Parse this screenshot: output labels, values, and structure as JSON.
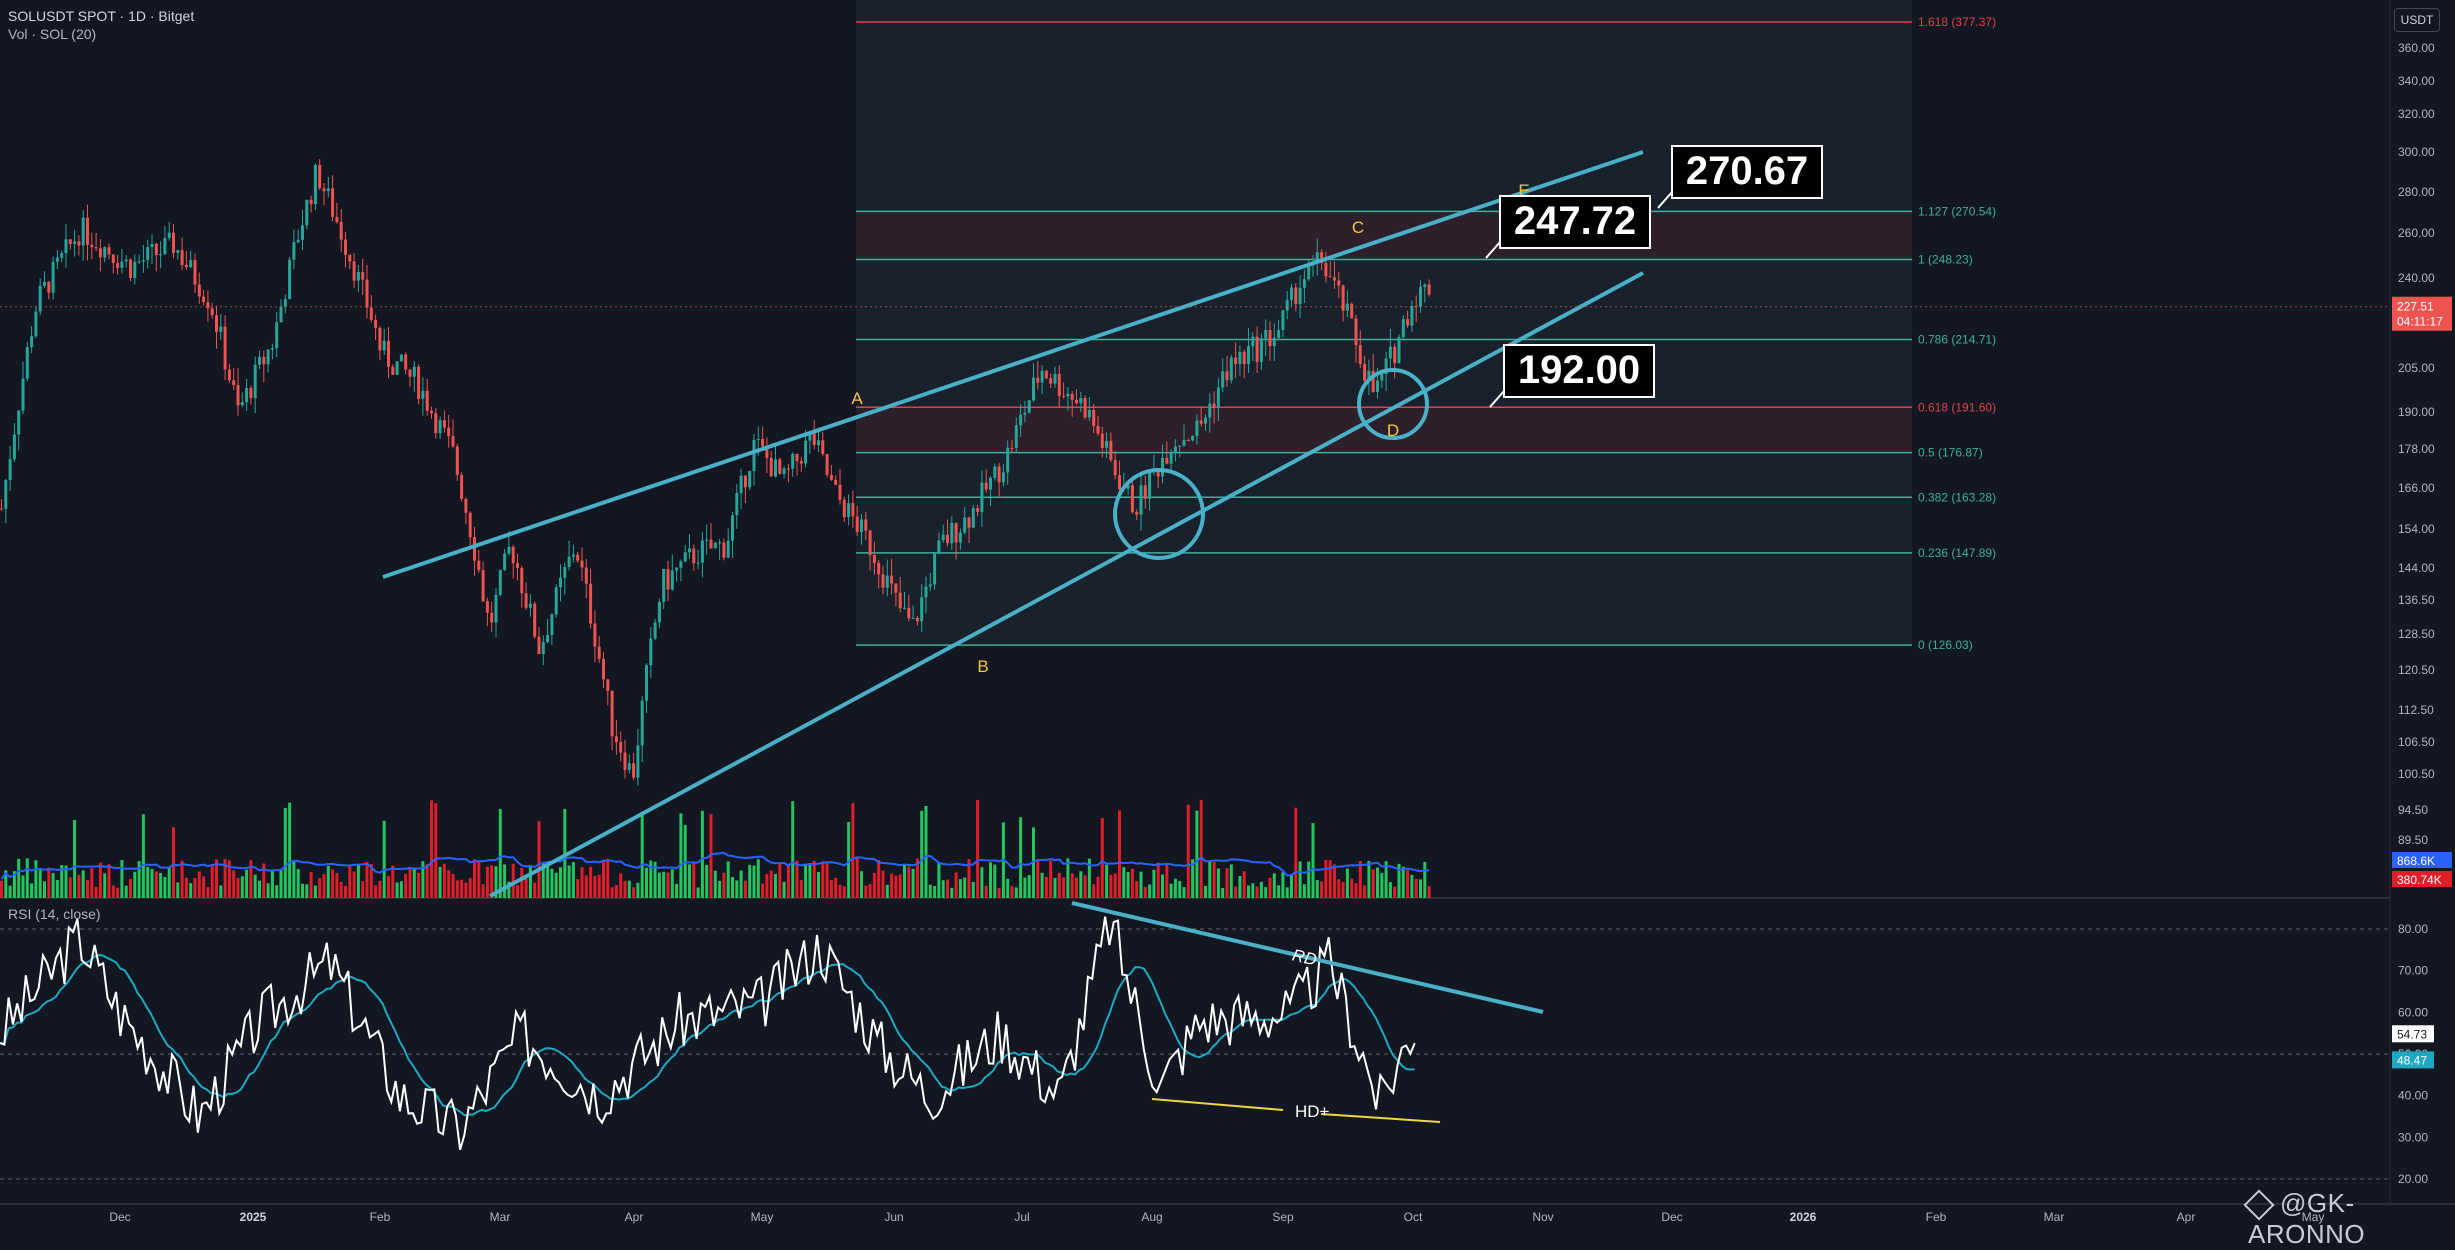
{
  "header": {
    "symbol_line": "SOLUSDT SPOT · 1D · Bitget",
    "volume_line": "Vol · SOL (20)",
    "rsi_line": "RSI (14, close)",
    "currency_badge": "USDT"
  },
  "watermark": "@GK-ARONNO",
  "colors": {
    "background": "#131722",
    "up_candle": "#26a69a",
    "down_candle": "#ef5350",
    "volume_up": "#22c55e",
    "volume_down": "#e11d2a",
    "volume_ma": "#2962ff",
    "fib_line": "#3fae9b",
    "fib_line_red": "#e0414a",
    "channel": "#4ab0c8",
    "rsi_line": "#ffffff",
    "rsi_ma": "#1fa8c2",
    "wave_label": "#f5c542",
    "hd_line": "#f0d544"
  },
  "chart_data": {
    "type": "candlestick",
    "symbol": "SOLUSDT",
    "timeframe": "1D",
    "exchange": "Bitget",
    "x_axis_labels": [
      "Dec",
      "2025",
      "Feb",
      "Mar",
      "Apr",
      "May",
      "Jun",
      "Jul",
      "Aug",
      "Sep",
      "Oct",
      "Nov",
      "Dec",
      "2026",
      "Feb",
      "Mar",
      "Apr",
      "May"
    ],
    "price_axis_ticks": [
      "360.00",
      "340.00",
      "320.00",
      "300.00",
      "280.00",
      "260.00",
      "240.00",
      "220.00",
      "205.00",
      "190.00",
      "178.00",
      "166.00",
      "154.00",
      "144.00",
      "136.50",
      "128.50",
      "120.50",
      "112.50",
      "106.50",
      "100.50",
      "94.50",
      "89.50"
    ],
    "price_axis_values": [
      360,
      340,
      320,
      300,
      280,
      260,
      240,
      220,
      205,
      190,
      178,
      166,
      154,
      144,
      136.5,
      128.5,
      120.5,
      112.5,
      106.5,
      100.5,
      94.5,
      89.5
    ],
    "last_price": {
      "label": "227.51",
      "timer": "04:11:17",
      "value": 227.51
    },
    "volume_badges": [
      "868.6K",
      "380.74K"
    ],
    "fibonacci": [
      {
        "label": "1.618 (377.37)",
        "price": 377.37,
        "color": "red"
      },
      {
        "label": "1.127 (270.54)",
        "price": 270.54,
        "color": "teal"
      },
      {
        "label": "1 (248.23)",
        "price": 248.23,
        "color": "teal"
      },
      {
        "label": "0.786 (214.71)",
        "price": 214.71,
        "color": "teal"
      },
      {
        "label": "0.618 (191.60)",
        "price": 191.6,
        "color": "red"
      },
      {
        "label": "0.5 (176.87)",
        "price": 176.87,
        "color": "teal"
      },
      {
        "label": "0.382 (163.28)",
        "price": 163.28,
        "color": "teal"
      },
      {
        "label": "0.236 (147.89)",
        "price": 147.89,
        "color": "teal"
      },
      {
        "label": "0 (126.03)",
        "price": 126.03,
        "color": "teal"
      }
    ],
    "price_callouts": [
      {
        "label": "270.67",
        "price": 270.67
      },
      {
        "label": "247.72",
        "price": 247.72
      },
      {
        "label": "192.00",
        "price": 192.0
      }
    ],
    "wave_labels": [
      "A",
      "B",
      "C",
      "D",
      "E"
    ],
    "rsi": {
      "ticks": [
        "80.00",
        "70.00",
        "60.00",
        "50.00",
        "40.00",
        "30.00",
        "20.00"
      ],
      "tick_values": [
        80,
        70,
        60,
        50,
        40,
        30,
        20
      ],
      "current": "54.73",
      "current_value": 54.73,
      "ma": "48.47",
      "ma_value": 48.47,
      "annotations": [
        "RD",
        "HD+"
      ]
    }
  }
}
